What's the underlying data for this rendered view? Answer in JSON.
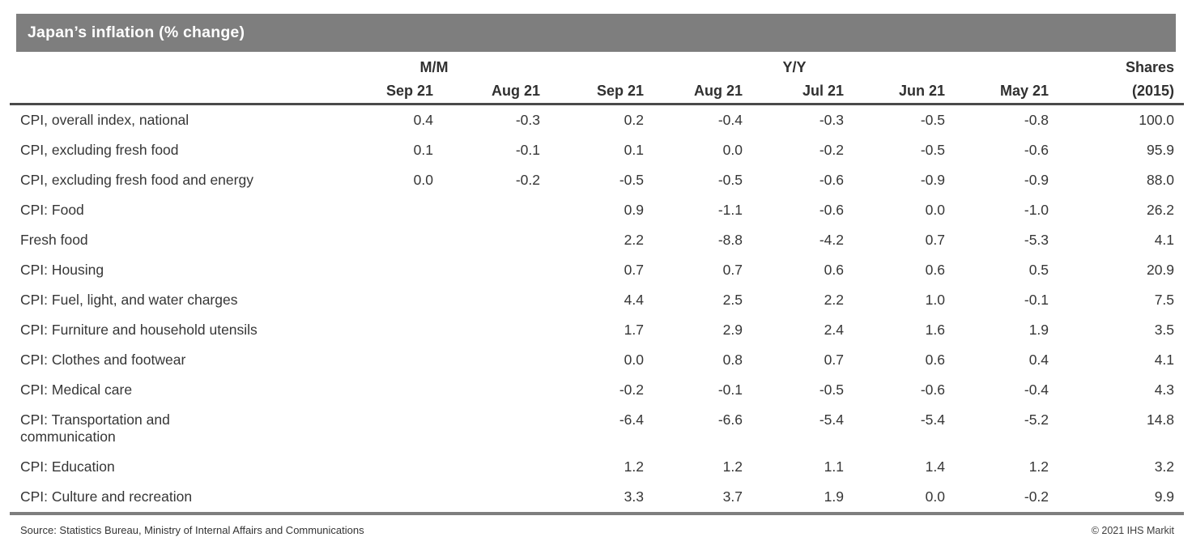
{
  "title": "Japan’s inflation (% change)",
  "colors": {
    "title_bar_bg": "#7e7e7e",
    "title_text": "#ffffff",
    "body_text": "#363636",
    "header_rule": "#4a4a4a",
    "bottom_rule": "#7e7e7e",
    "background": "#ffffff"
  },
  "table": {
    "group_headers": {
      "mm": "M/M",
      "yy": "Y/Y",
      "shares_top": "Shares",
      "shares_bottom": "(2015)"
    },
    "month_headers": [
      "Sep 21",
      "Aug 21",
      "Sep 21",
      "Aug 21",
      "Jul 21",
      "Jun 21",
      "May 21"
    ],
    "rows": [
      {
        "label": "CPI, overall index, national",
        "values": [
          "0.4",
          "-0.3",
          "0.2",
          "-0.4",
          "-0.3",
          "-0.5",
          "-0.8",
          "100.0"
        ]
      },
      {
        "label": "CPI, excluding fresh food",
        "values": [
          "0.1",
          "-0.1",
          "0.1",
          "0.0",
          "-0.2",
          "-0.5",
          "-0.6",
          "95.9"
        ]
      },
      {
        "label": "CPI, excluding fresh food and energy",
        "values": [
          "0.0",
          "-0.2",
          "-0.5",
          "-0.5",
          "-0.6",
          "-0.9",
          "-0.9",
          "88.0"
        ]
      },
      {
        "label": "CPI: Food",
        "values": [
          "",
          "",
          "0.9",
          "-1.1",
          "-0.6",
          "0.0",
          "-1.0",
          "26.2"
        ]
      },
      {
        "label": "Fresh food",
        "values": [
          "",
          "",
          "2.2",
          "-8.8",
          "-4.2",
          "0.7",
          "-5.3",
          "4.1"
        ]
      },
      {
        "label": "CPI: Housing",
        "values": [
          "",
          "",
          "0.7",
          "0.7",
          "0.6",
          "0.6",
          "0.5",
          "20.9"
        ]
      },
      {
        "label": "CPI: Fuel, light, and water charges",
        "values": [
          "",
          "",
          "4.4",
          "2.5",
          "2.2",
          "1.0",
          "-0.1",
          "7.5"
        ]
      },
      {
        "label": "CPI: Furniture and household utensils",
        "values": [
          "",
          "",
          "1.7",
          "2.9",
          "2.4",
          "1.6",
          "1.9",
          "3.5"
        ]
      },
      {
        "label": "CPI: Clothes and footwear",
        "values": [
          "",
          "",
          "0.0",
          "0.8",
          "0.7",
          "0.6",
          "0.4",
          "4.1"
        ]
      },
      {
        "label": "CPI: Medical care",
        "values": [
          "",
          "",
          "-0.2",
          "-0.1",
          "-0.5",
          "-0.6",
          "-0.4",
          "4.3"
        ]
      },
      {
        "label": "CPI: Transportation and\ncommunication",
        "values": [
          "",
          "",
          "-6.4",
          "-6.6",
          "-5.4",
          "-5.4",
          "-5.2",
          "14.8"
        ]
      },
      {
        "label": "CPI: Education",
        "values": [
          "",
          "",
          "1.2",
          "1.2",
          "1.1",
          "1.4",
          "1.2",
          "3.2"
        ]
      },
      {
        "label": "CPI: Culture and recreation",
        "values": [
          "",
          "",
          "3.3",
          "3.7",
          "1.9",
          "0.0",
          "-0.2",
          "9.9"
        ]
      }
    ]
  },
  "footer": {
    "source": "Source: Statistics Bureau, Ministry of Internal Affairs and Communications",
    "copyright": "© 2021 IHS Markit"
  },
  "chart_data": {
    "type": "table",
    "title": "Japan’s inflation (% change)",
    "column_groups": [
      "M/M",
      "M/M",
      "Y/Y",
      "Y/Y",
      "Y/Y",
      "Y/Y",
      "Y/Y",
      "Shares"
    ],
    "columns": [
      "M/M Sep 21",
      "M/M Aug 21",
      "Y/Y Sep 21",
      "Y/Y Aug 21",
      "Y/Y Jul 21",
      "Y/Y Jun 21",
      "Y/Y May 21",
      "Shares (2015)"
    ],
    "rows": [
      {
        "label": "CPI, overall index, national",
        "values": [
          0.4,
          -0.3,
          0.2,
          -0.4,
          -0.3,
          -0.5,
          -0.8,
          100.0
        ]
      },
      {
        "label": "CPI, excluding fresh food",
        "values": [
          0.1,
          -0.1,
          0.1,
          0.0,
          -0.2,
          -0.5,
          -0.6,
          95.9
        ]
      },
      {
        "label": "CPI, excluding fresh food and energy",
        "values": [
          0.0,
          -0.2,
          -0.5,
          -0.5,
          -0.6,
          -0.9,
          -0.9,
          88.0
        ]
      },
      {
        "label": "CPI: Food",
        "values": [
          null,
          null,
          0.9,
          -1.1,
          -0.6,
          0.0,
          -1.0,
          26.2
        ]
      },
      {
        "label": "Fresh food",
        "values": [
          null,
          null,
          2.2,
          -8.8,
          -4.2,
          0.7,
          -5.3,
          4.1
        ]
      },
      {
        "label": "CPI: Housing",
        "values": [
          null,
          null,
          0.7,
          0.7,
          0.6,
          0.6,
          0.5,
          20.9
        ]
      },
      {
        "label": "CPI: Fuel, light, and water charges",
        "values": [
          null,
          null,
          4.4,
          2.5,
          2.2,
          1.0,
          -0.1,
          7.5
        ]
      },
      {
        "label": "CPI: Furniture and household utensils",
        "values": [
          null,
          null,
          1.7,
          2.9,
          2.4,
          1.6,
          1.9,
          3.5
        ]
      },
      {
        "label": "CPI: Clothes and footwear",
        "values": [
          null,
          null,
          0.0,
          0.8,
          0.7,
          0.6,
          0.4,
          4.1
        ]
      },
      {
        "label": "CPI: Medical care",
        "values": [
          null,
          null,
          -0.2,
          -0.1,
          -0.5,
          -0.6,
          -0.4,
          4.3
        ]
      },
      {
        "label": "CPI: Transportation and communication",
        "values": [
          null,
          null,
          -6.4,
          -6.6,
          -5.4,
          -5.4,
          -5.2,
          14.8
        ]
      },
      {
        "label": "CPI: Education",
        "values": [
          null,
          null,
          1.2,
          1.2,
          1.1,
          1.4,
          1.2,
          3.2
        ]
      },
      {
        "label": "CPI: Culture and recreation",
        "values": [
          null,
          null,
          3.3,
          3.7,
          1.9,
          0.0,
          -0.2,
          9.9
        ]
      }
    ]
  }
}
